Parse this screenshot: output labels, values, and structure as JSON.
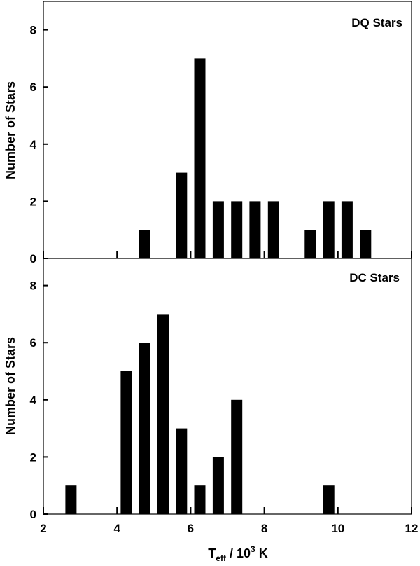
{
  "chart_data": [
    {
      "type": "bar",
      "title": "DQ Stars",
      "xlabel": "",
      "ylabel": "Number of Stars",
      "xlim": [
        2,
        12
      ],
      "ylim": [
        0,
        9
      ],
      "x_ticks": [
        "2",
        "4",
        "6",
        "8",
        "10",
        "12"
      ],
      "y_ticks": [
        "0",
        "2",
        "4",
        "6",
        "8"
      ],
      "bin_width": 0.5,
      "x": [
        4.75,
        5.75,
        6.25,
        6.75,
        7.25,
        7.75,
        8.25,
        9.25,
        9.75,
        10.25,
        10.75
      ],
      "values": [
        1,
        3,
        7,
        2,
        2,
        2,
        2,
        1,
        2,
        2,
        1
      ],
      "grid": false,
      "color": "#000000"
    },
    {
      "type": "bar",
      "title": "DC Stars",
      "xlabel_main": "T",
      "xlabel_sub": "eff",
      "xlabel_rest": " / 10",
      "xlabel_sup": "3",
      "xlabel_unit": " K",
      "ylabel": "Number of Stars",
      "xlim": [
        2,
        12
      ],
      "ylim": [
        0,
        9
      ],
      "x_ticks": [
        "2",
        "4",
        "6",
        "8",
        "10",
        "12"
      ],
      "y_ticks": [
        "0",
        "2",
        "4",
        "6",
        "8"
      ],
      "bin_width": 0.5,
      "x": [
        2.75,
        4.25,
        4.75,
        5.25,
        5.75,
        6.25,
        6.75,
        7.25,
        9.75
      ],
      "values": [
        1,
        5,
        6,
        7,
        3,
        1,
        2,
        4,
        1
      ],
      "grid": false,
      "color": "#000000"
    }
  ]
}
